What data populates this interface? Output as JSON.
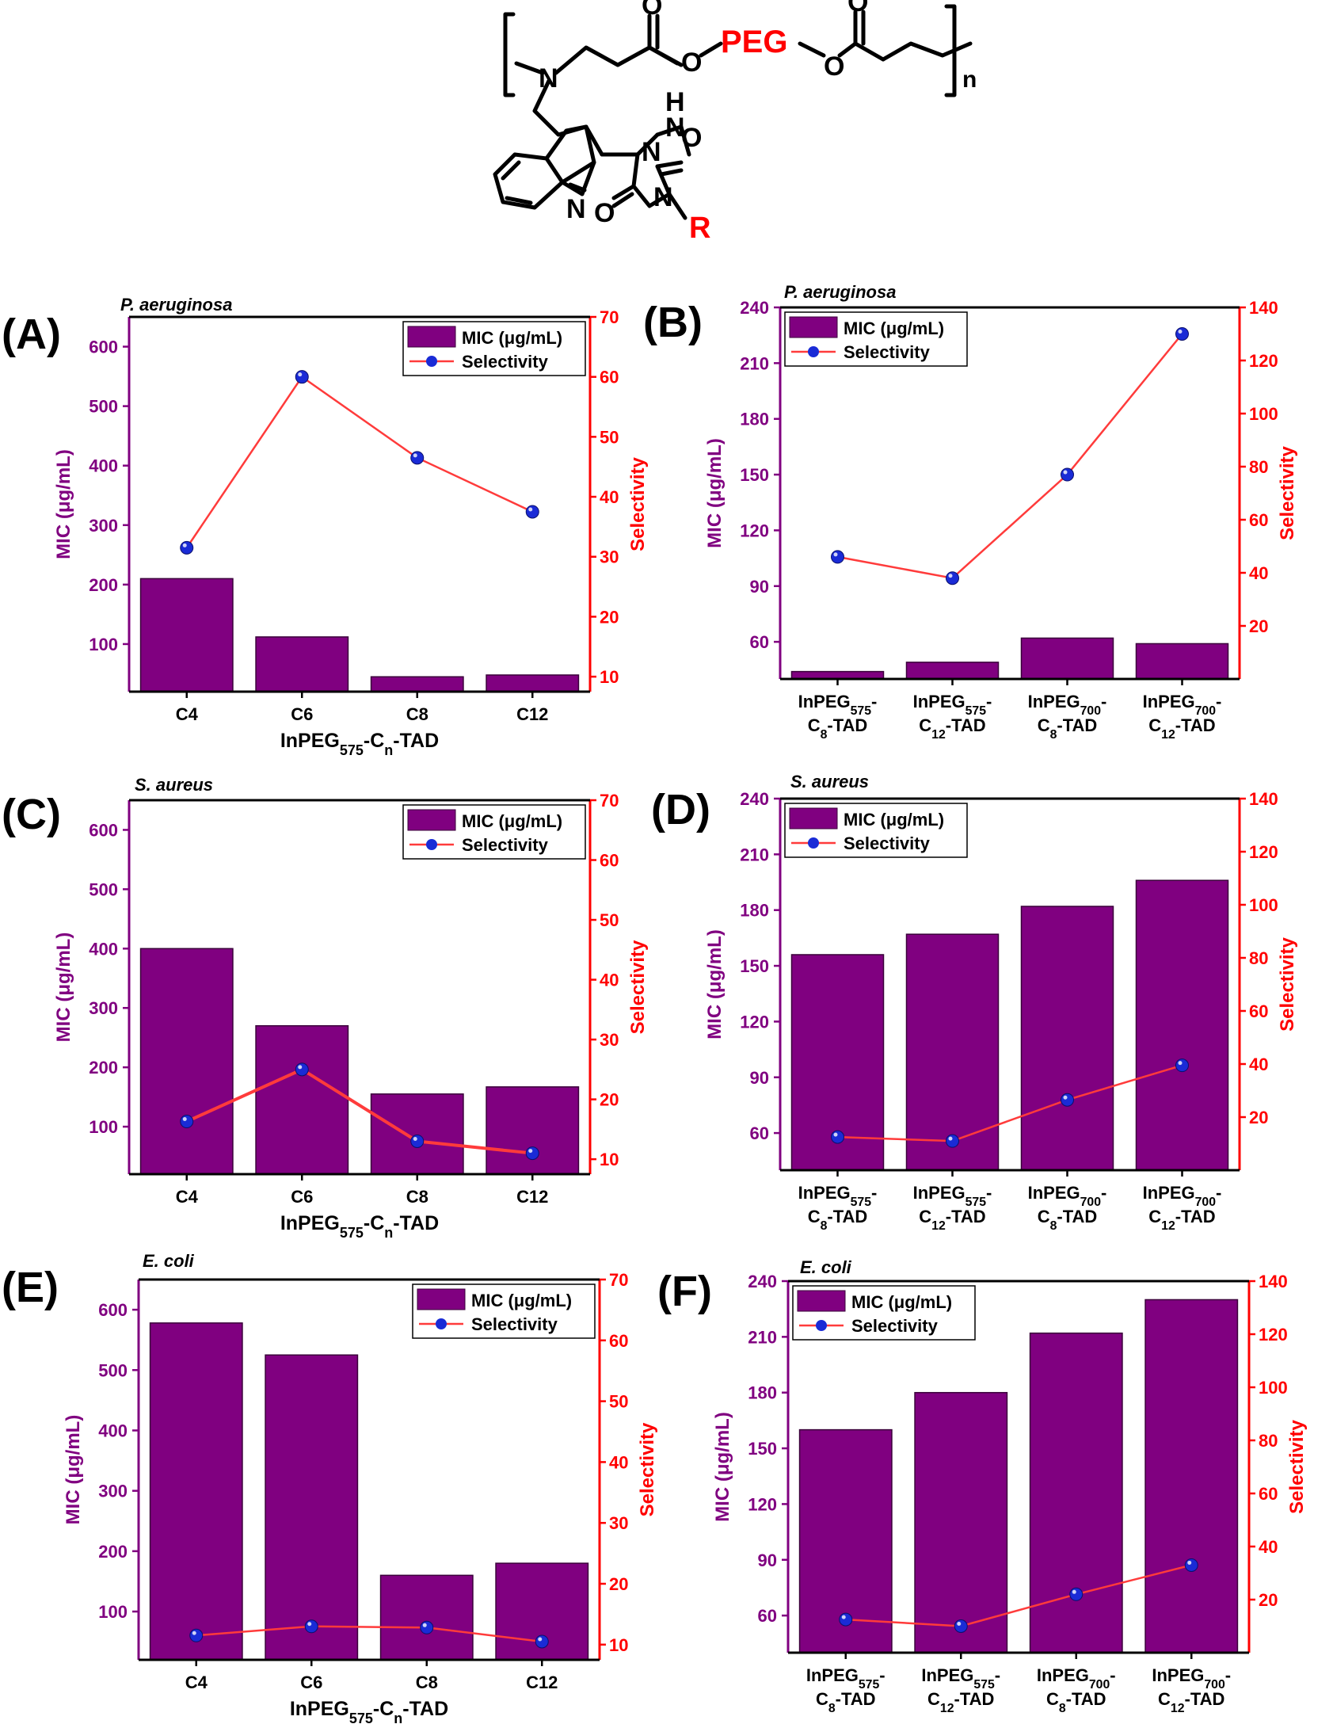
{
  "structure": {
    "peg_label": "PEG",
    "n_label": "n",
    "r_label": "R",
    "atoms": {
      "N": "N",
      "O": "O",
      "H": "H"
    }
  },
  "colors": {
    "bar": "#800080",
    "bar_stroke": "#3a003a",
    "selectivity_line": "#ff3b3b",
    "marker": "#1a2bd6",
    "left_axis": "#800080",
    "right_axis": "#ff0000"
  },
  "legend": {
    "mic": "MIC (μg/mL)",
    "selectivity": "Selectivity"
  },
  "chart_data": [
    {
      "id": "A",
      "panel_label": "(A)",
      "organism": "P. aeruginosa",
      "type": "bar",
      "categories": [
        "C4",
        "C6",
        "C8",
        "C12"
      ],
      "xlabel_parts": [
        [
          "InPEG",
          ""
        ],
        [
          "575",
          "sub"
        ],
        [
          "-C",
          ""
        ],
        [
          "n",
          "sub"
        ],
        [
          "-TAD",
          ""
        ]
      ],
      "ylabel": "MIC (μg/mL)",
      "y2label": "Selectivity",
      "ylim": [
        20,
        650
      ],
      "yticks": [
        100,
        200,
        300,
        400,
        500,
        600
      ],
      "y2lim": [
        7.5,
        70
      ],
      "y2ticks": [
        10,
        20,
        30,
        40,
        50,
        60,
        70
      ],
      "series": [
        {
          "name": "MIC (μg/mL)",
          "axis": "left",
          "type": "bar",
          "values": [
            210,
            112,
            45,
            48
          ]
        },
        {
          "name": "Selectivity",
          "axis": "right",
          "type": "line",
          "values": [
            31.5,
            60,
            46.5,
            37.5
          ]
        }
      ],
      "legend_position": "top-right"
    },
    {
      "id": "B",
      "panel_label": "(B)",
      "organism": "P. aeruginosa",
      "type": "bar",
      "categories": [
        [
          [
            [
              "InPEG",
              ""
            ],
            [
              "575",
              "sub"
            ],
            [
              "-",
              ""
            ]
          ],
          [
            [
              "C",
              ""
            ],
            [
              "8",
              "sub"
            ],
            [
              "-TAD",
              ""
            ]
          ]
        ],
        [
          [
            [
              "InPEG",
              ""
            ],
            [
              "575",
              "sub"
            ],
            [
              "-",
              ""
            ]
          ],
          [
            [
              "C",
              ""
            ],
            [
              "12",
              "sub"
            ],
            [
              "-TAD",
              ""
            ]
          ]
        ],
        [
          [
            [
              "InPEG",
              ""
            ],
            [
              "700",
              "sub"
            ],
            [
              "-",
              ""
            ]
          ],
          [
            [
              "C",
              ""
            ],
            [
              "8",
              "sub"
            ],
            [
              "-TAD",
              ""
            ]
          ]
        ],
        [
          [
            [
              "InPEG",
              ""
            ],
            [
              "700",
              "sub"
            ],
            [
              "-",
              ""
            ]
          ],
          [
            [
              "C",
              ""
            ],
            [
              "12",
              "sub"
            ],
            [
              "-TAD",
              ""
            ]
          ]
        ]
      ],
      "ylabel": "MIC (μg/mL)",
      "y2label": "Selectivity",
      "ylim": [
        40,
        240
      ],
      "yticks": [
        60,
        90,
        120,
        150,
        180,
        210,
        240
      ],
      "y2lim": [
        0,
        140
      ],
      "y2ticks": [
        20,
        40,
        60,
        80,
        100,
        120,
        140
      ],
      "series": [
        {
          "name": "MIC (μg/mL)",
          "axis": "left",
          "type": "bar",
          "values": [
            44,
            49,
            62,
            59
          ]
        },
        {
          "name": "Selectivity",
          "axis": "right",
          "type": "line",
          "values": [
            46,
            38,
            77,
            130
          ]
        }
      ],
      "legend_position": "top-left"
    },
    {
      "id": "C",
      "panel_label": "(C)",
      "organism": "S. aureus",
      "type": "bar",
      "categories": [
        "C4",
        "C6",
        "C8",
        "C12"
      ],
      "xlabel_parts": [
        [
          "InPEG",
          ""
        ],
        [
          "575",
          "sub"
        ],
        [
          "-C",
          ""
        ],
        [
          "n",
          "sub"
        ],
        [
          "-TAD",
          ""
        ]
      ],
      "ylabel": "MIC (μg/mL)",
      "y2label": "Selectivity",
      "ylim": [
        20,
        650
      ],
      "yticks": [
        100,
        200,
        300,
        400,
        500,
        600
      ],
      "y2lim": [
        7.5,
        70
      ],
      "y2ticks": [
        10,
        20,
        30,
        40,
        50,
        60,
        70
      ],
      "series": [
        {
          "name": "MIC (μg/mL)",
          "axis": "left",
          "type": "bar",
          "values": [
            400,
            270,
            155,
            167
          ]
        },
        {
          "name": "Selectivity",
          "axis": "right",
          "type": "line",
          "values": [
            16.3,
            25,
            13,
            11
          ]
        }
      ],
      "legend_position": "top-right"
    },
    {
      "id": "D",
      "panel_label": "(D)",
      "organism": "S. aureus",
      "type": "bar",
      "categories": [
        [
          [
            [
              "InPEG",
              ""
            ],
            [
              "575",
              "sub"
            ],
            [
              "-",
              ""
            ]
          ],
          [
            [
              "C",
              ""
            ],
            [
              "8",
              "sub"
            ],
            [
              "-TAD",
              ""
            ]
          ]
        ],
        [
          [
            [
              "InPEG",
              ""
            ],
            [
              "575",
              "sub"
            ],
            [
              "-",
              ""
            ]
          ],
          [
            [
              "C",
              ""
            ],
            [
              "12",
              "sub"
            ],
            [
              "-TAD",
              ""
            ]
          ]
        ],
        [
          [
            [
              "InPEG",
              ""
            ],
            [
              "700",
              "sub"
            ],
            [
              "-",
              ""
            ]
          ],
          [
            [
              "C",
              ""
            ],
            [
              "8",
              "sub"
            ],
            [
              "-TAD",
              ""
            ]
          ]
        ],
        [
          [
            [
              "InPEG",
              ""
            ],
            [
              "700",
              "sub"
            ],
            [
              "-",
              ""
            ]
          ],
          [
            [
              "C",
              ""
            ],
            [
              "12",
              "sub"
            ],
            [
              "-TAD",
              ""
            ]
          ]
        ]
      ],
      "ylabel": "MIC (μg/mL)",
      "y2label": "Selectivity",
      "ylim": [
        40,
        240
      ],
      "yticks": [
        60,
        90,
        120,
        150,
        180,
        210,
        240
      ],
      "y2lim": [
        0,
        140
      ],
      "y2ticks": [
        20,
        40,
        60,
        80,
        100,
        120,
        140
      ],
      "series": [
        {
          "name": "MIC (μg/mL)",
          "axis": "left",
          "type": "bar",
          "values": [
            156,
            167,
            182,
            196
          ]
        },
        {
          "name": "Selectivity",
          "axis": "right",
          "type": "line",
          "values": [
            12.5,
            11,
            26.5,
            39.5
          ]
        }
      ],
      "legend_position": "top-left"
    },
    {
      "id": "E",
      "panel_label": "(E)",
      "organism": "E. coli",
      "type": "bar",
      "categories": [
        "C4",
        "C6",
        "C8",
        "C12"
      ],
      "xlabel_parts": [
        [
          "InPEG",
          ""
        ],
        [
          "575",
          "sub"
        ],
        [
          "-C",
          ""
        ],
        [
          "n",
          "sub"
        ],
        [
          "-TAD",
          ""
        ]
      ],
      "ylabel": "MIC (μg/mL)",
      "y2label": "Selectivity",
      "ylim": [
        20,
        650
      ],
      "yticks": [
        100,
        200,
        300,
        400,
        500,
        600
      ],
      "y2lim": [
        7.5,
        70
      ],
      "y2ticks": [
        10,
        20,
        30,
        40,
        50,
        60,
        70
      ],
      "series": [
        {
          "name": "MIC (μg/mL)",
          "axis": "left",
          "type": "bar",
          "values": [
            578,
            525,
            160,
            180
          ]
        },
        {
          "name": "Selectivity",
          "axis": "right",
          "type": "line",
          "values": [
            11.5,
            13,
            12.8,
            10.5
          ]
        }
      ],
      "legend_position": "top-right"
    },
    {
      "id": "F",
      "panel_label": "(F)",
      "organism": "E. coli",
      "type": "bar",
      "categories": [
        [
          [
            [
              "InPEG",
              ""
            ],
            [
              "575",
              "sub"
            ],
            [
              "-",
              ""
            ]
          ],
          [
            [
              "C",
              ""
            ],
            [
              "8",
              "sub"
            ],
            [
              "-TAD",
              ""
            ]
          ]
        ],
        [
          [
            [
              "InPEG",
              ""
            ],
            [
              "575",
              "sub"
            ],
            [
              "-",
              ""
            ]
          ],
          [
            [
              "C",
              ""
            ],
            [
              "12",
              "sub"
            ],
            [
              "-TAD",
              ""
            ]
          ]
        ],
        [
          [
            [
              "InPEG",
              ""
            ],
            [
              "700",
              "sub"
            ],
            [
              "-",
              ""
            ]
          ],
          [
            [
              "C",
              ""
            ],
            [
              "8",
              "sub"
            ],
            [
              "-TAD",
              ""
            ]
          ]
        ],
        [
          [
            [
              "InPEG",
              ""
            ],
            [
              "700",
              "sub"
            ],
            [
              "-",
              ""
            ]
          ],
          [
            [
              "C",
              ""
            ],
            [
              "12",
              "sub"
            ],
            [
              "-TAD",
              ""
            ]
          ]
        ]
      ],
      "ylabel": "MIC (μg/mL)",
      "y2label": "Selectivity",
      "ylim": [
        40,
        240
      ],
      "yticks": [
        60,
        90,
        120,
        150,
        180,
        210,
        240
      ],
      "y2lim": [
        0,
        140
      ],
      "y2ticks": [
        20,
        40,
        60,
        80,
        100,
        120,
        140
      ],
      "series": [
        {
          "name": "MIC (μg/mL)",
          "axis": "left",
          "type": "bar",
          "values": [
            160,
            180,
            212,
            230
          ]
        },
        {
          "name": "Selectivity",
          "axis": "right",
          "type": "line",
          "values": [
            12.5,
            10,
            22,
            33
          ]
        }
      ],
      "legend_position": "top-left"
    }
  ]
}
